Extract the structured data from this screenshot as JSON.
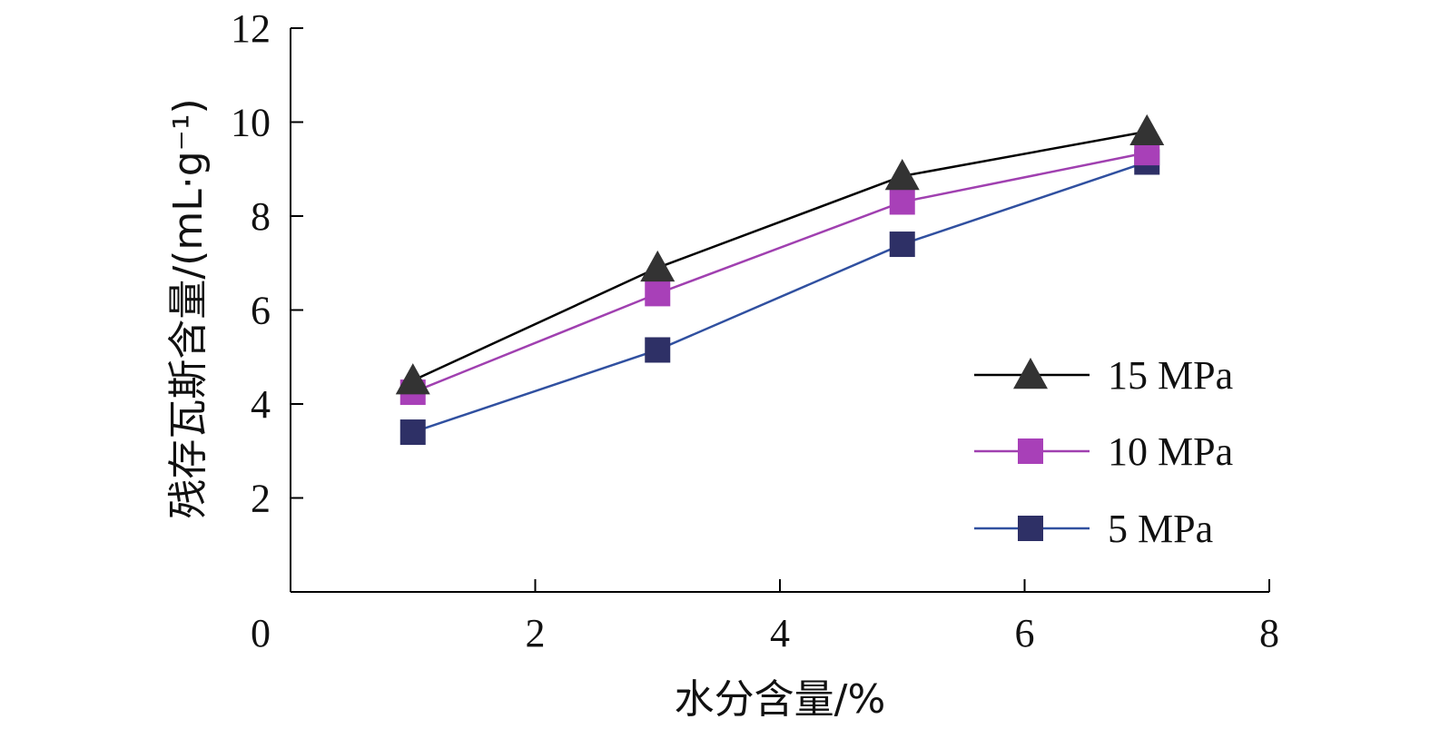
{
  "chart_data": {
    "type": "line",
    "title": "",
    "xlabel": "水分含量/%",
    "ylabel": "残存瓦斯含量/(mL·g⁻¹)",
    "xlim": [
      0,
      8
    ],
    "ylim": [
      0,
      12
    ],
    "x_ticks": [
      "0",
      "2",
      "4",
      "6",
      "8"
    ],
    "y_ticks": [
      "2",
      "4",
      "6",
      "8",
      "10",
      "12"
    ],
    "x_tick_values": [
      0,
      2,
      4,
      6,
      8
    ],
    "y_tick_values": [
      2,
      4,
      6,
      8,
      10,
      12
    ],
    "grid": false,
    "legend_position": "right",
    "x": [
      1,
      3,
      5,
      7
    ],
    "series": [
      {
        "name": "15 MPa",
        "values": [
          4.5,
          6.9,
          8.85,
          9.8
        ],
        "color": "#000000",
        "marker": "triangle",
        "marker_color": "#333333"
      },
      {
        "name": "10 MPa",
        "values": [
          4.25,
          6.35,
          8.3,
          9.35
        ],
        "color": "#A040B0",
        "marker": "square",
        "marker_color": "#A840B8"
      },
      {
        "name": "5 MPa",
        "values": [
          3.4,
          5.15,
          7.4,
          9.15
        ],
        "color": "#3050A0",
        "marker": "square",
        "marker_color": "#2E3066"
      }
    ]
  }
}
